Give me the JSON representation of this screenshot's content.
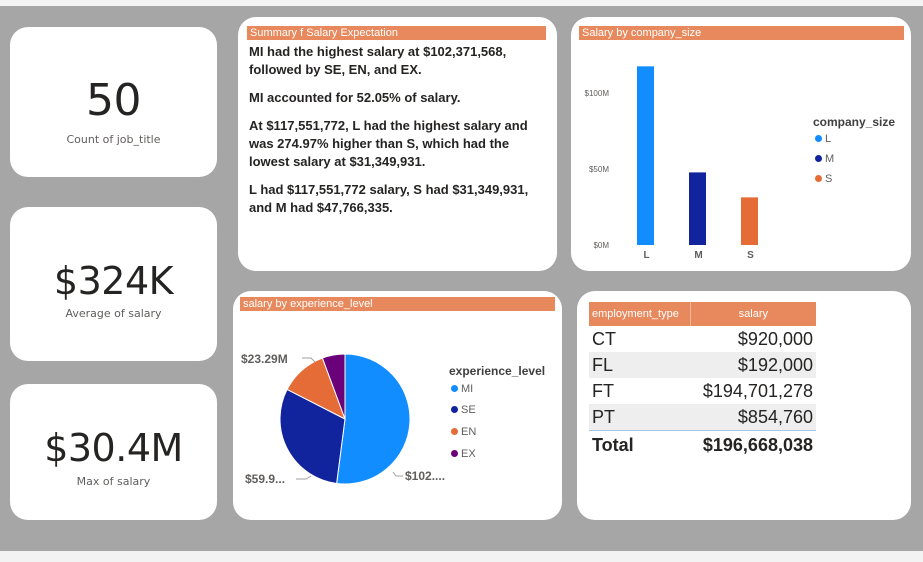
{
  "kpis": [
    {
      "value": "50",
      "label": "Count of job_title"
    },
    {
      "value": "$324K",
      "label": "Average of salary"
    },
    {
      "value": "$30.4M",
      "label": "Max of salary"
    }
  ],
  "summary": {
    "title": "Summary f Salary Expectation",
    "paragraphs": [
      "MI had the highest salary at $102,371,568, followed by SE, EN, and EX.",
      "MI accounted for 52.05% of salary.",
      "At $117,551,772, L had the highest salary and was 274.97% higher than S, which had the lowest salary at $31,349,931.",
      "L had $117,551,772 salary, S had $31,349,931, and M had $47,766,335."
    ]
  },
  "colors": {
    "title_bar": "#e8895d",
    "series_1": "#118dff",
    "series_2": "#12239e",
    "series_3": "#e66c37",
    "series_4": "#6b007b"
  },
  "chart_data": [
    {
      "type": "bar",
      "title": "Salary by company_size",
      "categories": [
        "L",
        "M",
        "S"
      ],
      "values": [
        117551772,
        47766335,
        31349931
      ],
      "ylim": [
        0,
        125000000
      ],
      "yticks": [
        {
          "value": 0,
          "label": "$0M"
        },
        {
          "value": 50000000,
          "label": "$50M"
        },
        {
          "value": 100000000,
          "label": "$100M"
        }
      ],
      "legend": {
        "title": "company_size",
        "items": [
          "L",
          "M",
          "S"
        ],
        "position": "right"
      },
      "grid": false
    },
    {
      "type": "pie",
      "title": "salary by experience_level",
      "labels": [
        "MI",
        "SE",
        "EN",
        "EX"
      ],
      "values": [
        102371568,
        59900000,
        23290000,
        11100000
      ],
      "data_labels": {
        "MI": "$102....",
        "SE": "$59.9...",
        "EN": "$23.29M"
      },
      "legend": {
        "title": "experience_level",
        "items": [
          "MI",
          "SE",
          "EN",
          "EX"
        ],
        "position": "right"
      }
    },
    {
      "type": "table",
      "columns": [
        "employment_type",
        "salary"
      ],
      "rows": [
        [
          "CT",
          "$920,000"
        ],
        [
          "FL",
          "$192,000"
        ],
        [
          "FT",
          "$194,701,278"
        ],
        [
          "PT",
          "$854,760"
        ]
      ],
      "total": [
        "Total",
        "$196,668,038"
      ]
    }
  ]
}
